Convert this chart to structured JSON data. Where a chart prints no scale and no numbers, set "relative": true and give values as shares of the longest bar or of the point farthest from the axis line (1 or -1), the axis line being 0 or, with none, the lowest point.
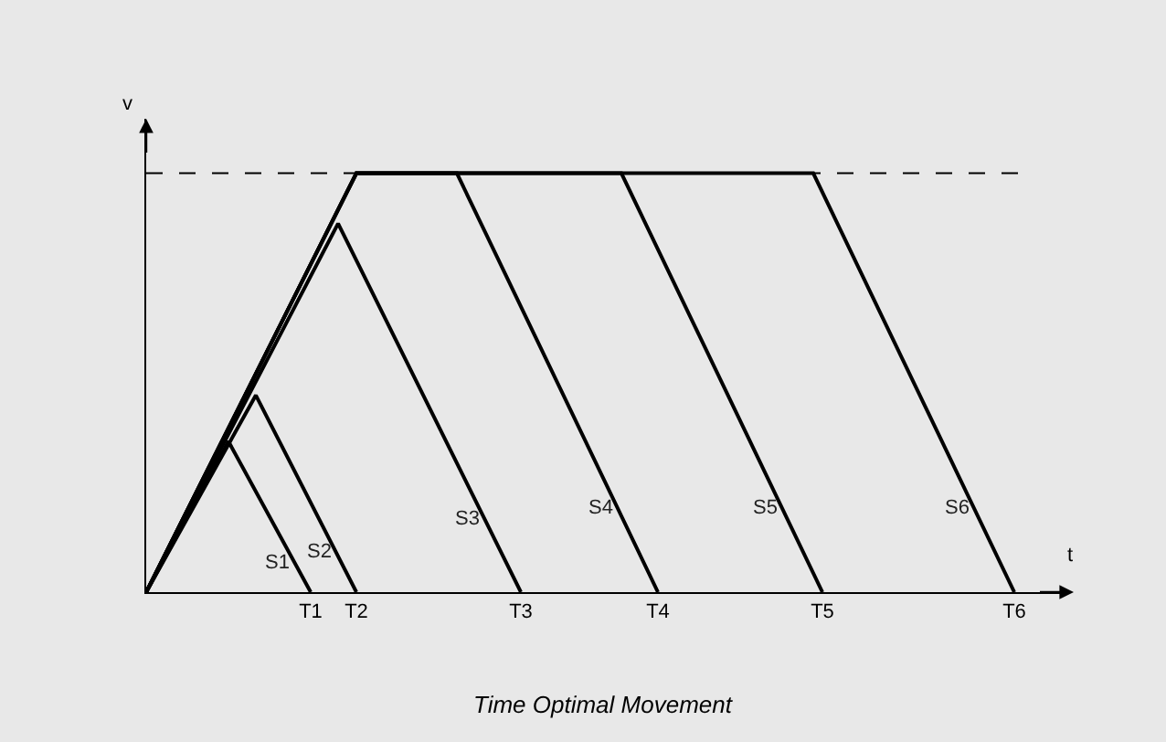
{
  "chart_data": {
    "type": "line",
    "title": "Time Optimal Movement",
    "xlabel": "t",
    "ylabel": "v",
    "relative": true,
    "categories": [
      null,
      null,
      null,
      null,
      null,
      null,
      null,
      null,
      null,
      null,
      null,
      null,
      null,
      null,
      null,
      null,
      null,
      null,
      "T1",
      null,
      null,
      null,
      null,
      "T2",
      null,
      null,
      null,
      null,
      null,
      null,
      null,
      null,
      null,
      null,
      null,
      null,
      null,
      null,
      null,
      null,
      null,
      "T3",
      null,
      null,
      null,
      null,
      null,
      null,
      null,
      null,
      null,
      null,
      null,
      null,
      null,
      null,
      "T4",
      null,
      null,
      null,
      null,
      null,
      null,
      null,
      null,
      null,
      null,
      null,
      null,
      null,
      null,
      null,
      null,
      null,
      "T5",
      null,
      null,
      null,
      null,
      null,
      null,
      null,
      null,
      null,
      null,
      null,
      null,
      null,
      null,
      null,
      null,
      null,
      null,
      null,
      null,
      "T6",
      null,
      null,
      null,
      null,
      null
    ],
    "tick_labels": "x",
    "grid": false,
    "legend": false,
    "marker": "none",
    "line_style": "solid",
    "ref_lines": [
      {
        "axis": "y",
        "value": 1,
        "line_style": "dashed",
        "color": "#000000"
      }
    ],
    "series": [
      {
        "name": "S1",
        "color": "#000000",
        "values": [
          0,
          null,
          null,
          null,
          null,
          null,
          null,
          null,
          null,
          0.36,
          null,
          null,
          null,
          null,
          null,
          null,
          null,
          null,
          0,
          null,
          null,
          null,
          null,
          null,
          null,
          null,
          null,
          null,
          null,
          null,
          null,
          null,
          null,
          null,
          null,
          null,
          null,
          null,
          null,
          null,
          null,
          null,
          null,
          null,
          null,
          null,
          null,
          null,
          null,
          null,
          null,
          null,
          null,
          null,
          null,
          null,
          null,
          null,
          null,
          null,
          null,
          null,
          null,
          null,
          null,
          null,
          null,
          null,
          null,
          null,
          null,
          null,
          null,
          null,
          null,
          null,
          null,
          null,
          null,
          null,
          null,
          null,
          null,
          null,
          null,
          null,
          null,
          null,
          null,
          null,
          null,
          null,
          null,
          null,
          null,
          null,
          null,
          null,
          null,
          null,
          null
        ]
      },
      {
        "name": "S2",
        "color": "#000000",
        "values": [
          0,
          null,
          null,
          null,
          null,
          null,
          null,
          null,
          null,
          null,
          null,
          null,
          0.47,
          null,
          null,
          null,
          null,
          null,
          null,
          null,
          null,
          null,
          null,
          0,
          null,
          null,
          null,
          null,
          null,
          null,
          null,
          null,
          null,
          null,
          null,
          null,
          null,
          null,
          null,
          null,
          null,
          null,
          null,
          null,
          null,
          null,
          null,
          null,
          null,
          null,
          null,
          null,
          null,
          null,
          null,
          null,
          null,
          null,
          null,
          null,
          null,
          null,
          null,
          null,
          null,
          null,
          null,
          null,
          null,
          null,
          null,
          null,
          null,
          null,
          null,
          null,
          null,
          null,
          null,
          null,
          null,
          null,
          null,
          null,
          null,
          null,
          null,
          null,
          null,
          null,
          null,
          null,
          null,
          null,
          null,
          null,
          null,
          null,
          null,
          null,
          null
        ]
      },
      {
        "name": "S3",
        "color": "#000000",
        "values": [
          0,
          null,
          null,
          null,
          null,
          null,
          null,
          null,
          null,
          null,
          null,
          null,
          null,
          null,
          null,
          null,
          null,
          null,
          null,
          null,
          null,
          0.88,
          null,
          null,
          null,
          null,
          null,
          null,
          null,
          null,
          null,
          null,
          null,
          null,
          null,
          null,
          null,
          null,
          null,
          null,
          null,
          0,
          null,
          null,
          null,
          null,
          null,
          null,
          null,
          null,
          null,
          null,
          null,
          null,
          null,
          null,
          null,
          null,
          null,
          null,
          null,
          null,
          null,
          null,
          null,
          null,
          null,
          null,
          null,
          null,
          null,
          null,
          null,
          null,
          null,
          null,
          null,
          null,
          null,
          null,
          null,
          null,
          null,
          null,
          null,
          null,
          null,
          null,
          null,
          null,
          null,
          null,
          null,
          null,
          null,
          null,
          null,
          null,
          null,
          null,
          null
        ]
      },
      {
        "name": "S4",
        "color": "#000000",
        "values": [
          0,
          null,
          null,
          null,
          null,
          null,
          null,
          null,
          null,
          null,
          null,
          null,
          null,
          null,
          null,
          null,
          null,
          null,
          null,
          null,
          null,
          null,
          null,
          1,
          null,
          null,
          null,
          null,
          null,
          null,
          null,
          null,
          null,
          null,
          1,
          null,
          null,
          null,
          null,
          null,
          null,
          null,
          null,
          null,
          null,
          null,
          null,
          null,
          null,
          null,
          null,
          null,
          null,
          null,
          null,
          null,
          0,
          null,
          null,
          null,
          null,
          null,
          null,
          null,
          null,
          null,
          null,
          null,
          null,
          null,
          null,
          null,
          null,
          null,
          null,
          null,
          null,
          null,
          null,
          null,
          null,
          null,
          null,
          null,
          null,
          null,
          null,
          null,
          null,
          null,
          null,
          null,
          null,
          null,
          null,
          null,
          null,
          null,
          null,
          null,
          null
        ]
      },
      {
        "name": "S5",
        "color": "#000000",
        "values": [
          0,
          null,
          null,
          null,
          null,
          null,
          null,
          null,
          null,
          null,
          null,
          null,
          null,
          null,
          null,
          null,
          null,
          null,
          null,
          null,
          null,
          null,
          null,
          1,
          null,
          null,
          null,
          null,
          null,
          null,
          null,
          null,
          null,
          null,
          null,
          null,
          null,
          null,
          null,
          null,
          null,
          null,
          null,
          null,
          null,
          null,
          null,
          null,
          null,
          null,
          null,
          null,
          1,
          null,
          null,
          null,
          null,
          null,
          null,
          null,
          null,
          null,
          null,
          null,
          null,
          null,
          null,
          null,
          null,
          null,
          null,
          null,
          null,
          null,
          0,
          null,
          null,
          null,
          null,
          null,
          null,
          null,
          null,
          null,
          null,
          null,
          null,
          null,
          null,
          null,
          null,
          null,
          null,
          null,
          null,
          null,
          null,
          null,
          null,
          null,
          null
        ]
      },
      {
        "name": "S6",
        "color": "#000000",
        "values": [
          0,
          null,
          null,
          null,
          null,
          null,
          null,
          null,
          null,
          null,
          null,
          null,
          null,
          null,
          null,
          null,
          null,
          null,
          null,
          null,
          null,
          null,
          null,
          1,
          null,
          null,
          null,
          null,
          null,
          null,
          null,
          null,
          null,
          null,
          null,
          null,
          null,
          null,
          null,
          null,
          null,
          null,
          null,
          null,
          null,
          null,
          null,
          null,
          null,
          null,
          null,
          null,
          null,
          null,
          null,
          null,
          null,
          null,
          null,
          null,
          null,
          null,
          null,
          null,
          null,
          null,
          null,
          null,
          null,
          null,
          null,
          null,
          null,
          1,
          null,
          null,
          null,
          null,
          null,
          null,
          null,
          null,
          null,
          null,
          null,
          null,
          null,
          null,
          null,
          null,
          null,
          null,
          null,
          null,
          null,
          0,
          null,
          null,
          null,
          null,
          null
        ]
      }
    ]
  }
}
